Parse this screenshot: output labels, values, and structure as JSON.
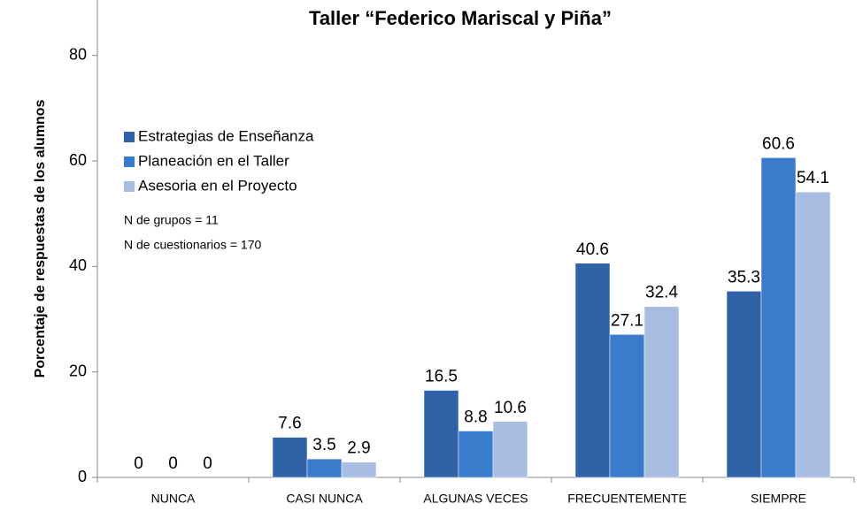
{
  "chart_data": {
    "type": "bar",
    "title": "Taller “Federico Mariscal y Piña”",
    "y_label": "Porcentaje de respuestas de los alumnos",
    "categories": [
      "NUNCA",
      "CASI NUNCA",
      "ALGUNAS VECES",
      "FRECUENTEMENTE",
      "SIEMPRE"
    ],
    "series": [
      {
        "name": "Estrategias de Enseñanza",
        "color": "#2f62a6",
        "values": [
          0,
          7.6,
          16.5,
          40.6,
          35.3
        ]
      },
      {
        "name": "Planeación en el Taller",
        "color": "#3b7bcc",
        "values": [
          0,
          3.5,
          8.8,
          27.1,
          60.6
        ]
      },
      {
        "name": "Asesoria en el Proyecto",
        "color": "#a8bde2",
        "values": [
          0,
          2.9,
          10.6,
          32.4,
          54.1
        ]
      }
    ],
    "annotations": [
      "N de grupos = 11",
      "N de cuestionarios = 170"
    ],
    "ylim": [
      0,
      90
    ],
    "yticks": [
      0,
      20,
      40,
      60,
      80
    ],
    "legend": "upper left",
    "grid": false
  }
}
